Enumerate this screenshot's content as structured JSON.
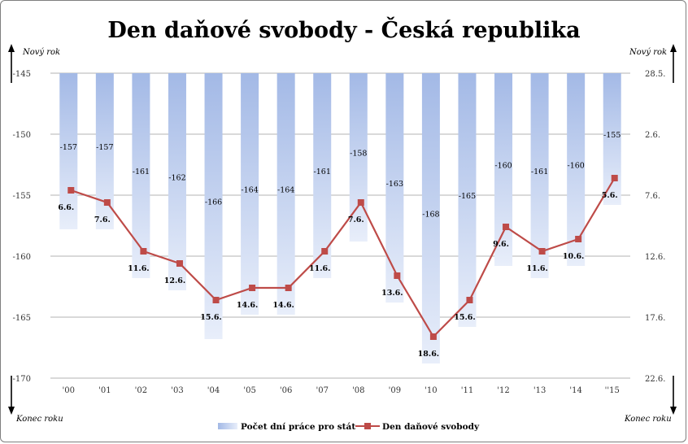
{
  "chart_data": {
    "type": "bar",
    "title": "Den daňové svobody - Česká republika",
    "categories": [
      "'00",
      "'01",
      "'02",
      "'03",
      "'04",
      "'05",
      "'06",
      "'07",
      "'08",
      "'09",
      "'10",
      "'11",
      "'12",
      "'13",
      "'14",
      "''15"
    ],
    "series": [
      {
        "name": "Počet dní práce pro stát",
        "type": "bar",
        "axis": "left",
        "values": [
          -157,
          -157,
          -161,
          -162,
          -166,
          -164,
          -164,
          -161,
          -158,
          -163,
          -168,
          -165,
          -160,
          -161,
          -160,
          -155
        ],
        "labels": [
          "-157",
          "-157",
          "-161",
          "-162",
          "-166",
          "-164",
          "-164",
          "-161",
          "-158",
          "-163",
          "-168",
          "-165",
          "-160",
          "-161",
          "-160",
          "-155"
        ]
      },
      {
        "name": "Den daňové svobody",
        "type": "line",
        "axis": "right",
        "values": [
          6.6,
          7.6,
          11.6,
          12.6,
          15.6,
          14.6,
          14.6,
          11.6,
          7.6,
          13.6,
          18.6,
          15.6,
          9.6,
          11.6,
          10.6,
          5.6
        ],
        "labels": [
          "6.6.",
          "7.6.",
          "11.6.",
          "12.6.",
          "15.6.",
          "14.6.",
          "14.6.",
          "11.6.",
          "7.6.",
          "13.6.",
          "18.6.",
          "15.6.",
          "9.6.",
          "11.6.",
          "10.6.",
          "5.6."
        ],
        "color": "#be4b48"
      }
    ],
    "left_axis": {
      "ticks": [
        -145,
        -150,
        -155,
        -160,
        -165,
        -170
      ],
      "ylim": [
        -170,
        -145
      ]
    },
    "right_axis": {
      "ticks": [
        "28.5.",
        "2.6.",
        "7.6.",
        "12.6.",
        "17.6.",
        "22.6."
      ],
      "ylim": [
        28.5,
        22.6
      ],
      "top_label": "Nový rok",
      "bottom_label": "Konec roku"
    },
    "left_axis_top_label": "Nový rok",
    "left_axis_bottom_label": "Konec roku",
    "grid": true,
    "legend": "bottom",
    "bar_color": "#a9c0e8",
    "line_color": "#be4b48"
  }
}
